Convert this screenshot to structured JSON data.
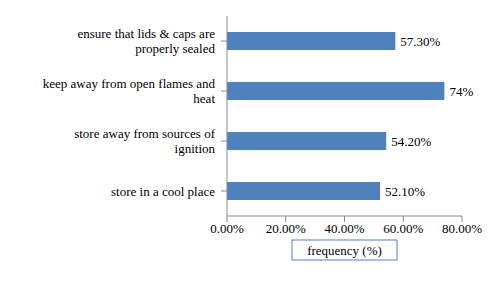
{
  "chart_data": {
    "type": "bar",
    "orientation": "horizontal",
    "categories": [
      "ensure that lids & caps are properly sealed",
      "keep away from open flames and heat",
      "store away from sources of ignition",
      "store in a cool place"
    ],
    "values": [
      57.3,
      74,
      54.2,
      52.1
    ],
    "value_labels": [
      "57.30%",
      "74%",
      "54.20%",
      "52.10%"
    ],
    "data_labels": true,
    "color": "#4f81bd",
    "x_label": "frequency (%)",
    "xlim": [
      0,
      80
    ],
    "xticks": [
      {
        "value": 0,
        "label": "0.00%"
      },
      {
        "value": 20,
        "label": "20.00%"
      },
      {
        "value": 40,
        "label": "40.00%"
      },
      {
        "value": 60,
        "label": "60.00%"
      },
      {
        "value": 80,
        "label": "80.00%"
      }
    ],
    "grid": false
  }
}
